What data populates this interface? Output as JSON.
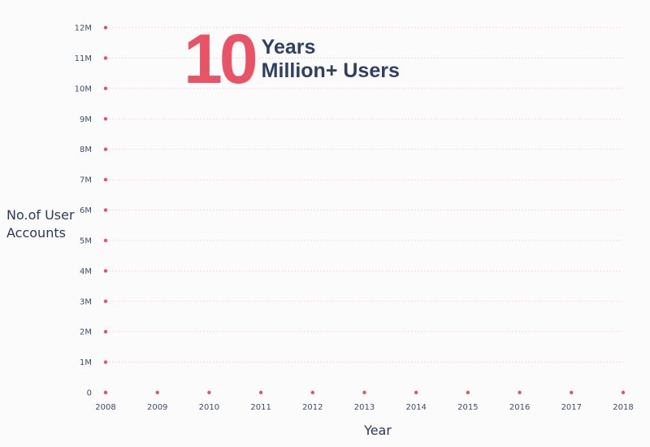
{
  "chart_data": {
    "type": "line",
    "title": "",
    "xlabel": "Year",
    "ylabel_lines": [
      "No.of User",
      "Accounts"
    ],
    "x": [
      "2008",
      "2009",
      "2010",
      "2011",
      "2012",
      "2013",
      "2014",
      "2015",
      "2016",
      "2017",
      "2018"
    ],
    "ylim": [
      0,
      12000000
    ],
    "y_ticks": [
      {
        "value": 0,
        "label": "0"
      },
      {
        "value": 1000000,
        "label": "1M"
      },
      {
        "value": 2000000,
        "label": "2M"
      },
      {
        "value": 3000000,
        "label": "3M"
      },
      {
        "value": 4000000,
        "label": "4M"
      },
      {
        "value": 5000000,
        "label": "5M"
      },
      {
        "value": 6000000,
        "label": "6M"
      },
      {
        "value": 7000000,
        "label": "7M"
      },
      {
        "value": 8000000,
        "label": "8M"
      },
      {
        "value": 9000000,
        "label": "9M"
      },
      {
        "value": 10000000,
        "label": "10M"
      },
      {
        "value": 11000000,
        "label": "11M"
      },
      {
        "value": 12000000,
        "label": "12M"
      }
    ],
    "series": [],
    "grid": true,
    "marker_color": "#e05563",
    "grid_color": "#f3d6dc",
    "label_color": "#3d4d6e"
  },
  "headline": {
    "number": "10",
    "line1": "Years",
    "line2": "Million+ Users"
  }
}
